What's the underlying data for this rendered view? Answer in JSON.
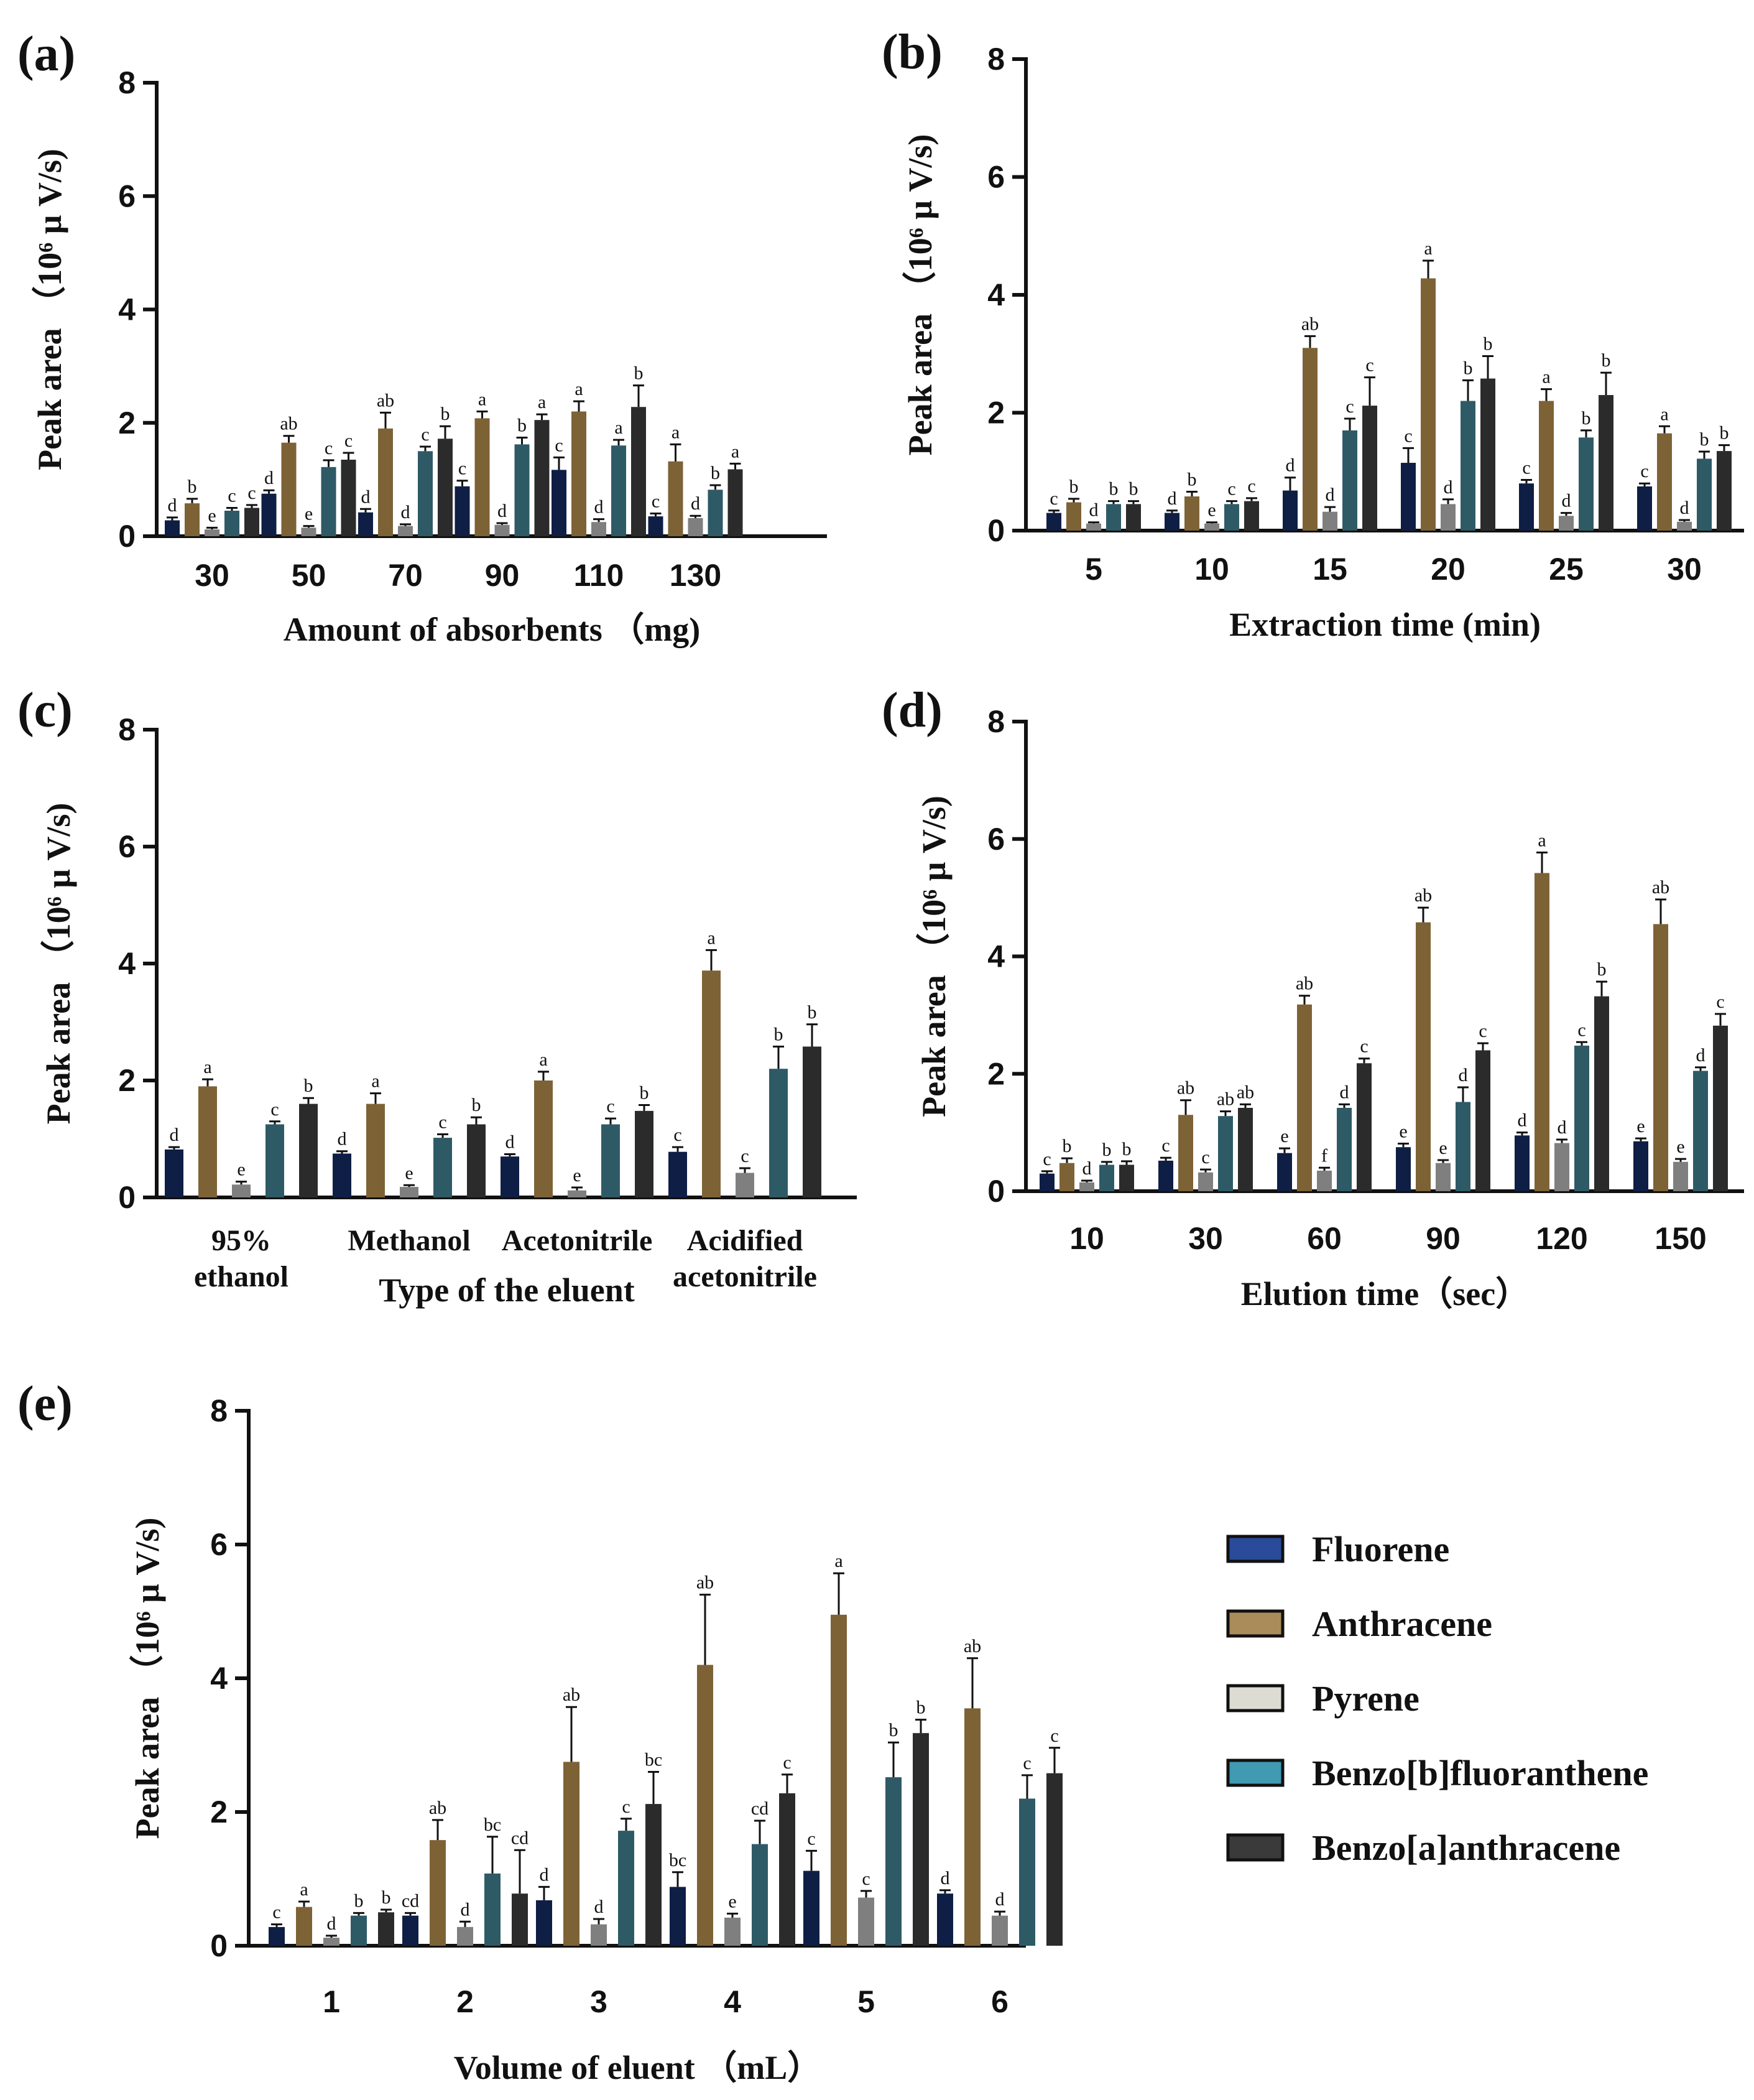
{
  "colors": {
    "Fluorene": "#0f1e45",
    "Anthracene": "#7d6236",
    "Pyrene": "#7f7f7f",
    "Benzo[b]fluoranthene": "#2e5a66",
    "Benzo[a]anthracene": "#2b2b2b",
    "legend_Fluorene": "#2a4a9a",
    "legend_Anthracene": "#a98c5a",
    "legend_Pyrene": "#dcdcd2",
    "legend_Benzo[b]fluoranthene": "#3f9ab2",
    "legend_Benzo[a]anthracene": "#3a3a3a"
  },
  "legend": {
    "entries": [
      "Fluorene",
      "Anthracene",
      "Pyrene",
      "Benzo[b]fluoranthene",
      "Benzo[a]anthracene"
    ]
  },
  "chart_data": [
    {
      "panel": "(a)",
      "type": "bar",
      "xlabel": "Amount of absorbents （mg)",
      "ylabel_main": "Peak area",
      "ylabel_unit": "（10⁶ μ V/s)",
      "ylim": [
        0,
        8
      ],
      "yticks": [
        "0",
        "2",
        "4",
        "6",
        "8"
      ],
      "categories": [
        "30",
        "50",
        "70",
        "90",
        "110",
        "130"
      ],
      "series": [
        {
          "name": "Fluorene",
          "values": [
            0.28,
            0.75,
            0.42,
            0.88,
            1.17,
            0.35
          ],
          "errors": [
            0.05,
            0.06,
            0.06,
            0.1,
            0.22,
            0.05
          ],
          "labels": [
            "d",
            "d",
            "d",
            "c",
            "c",
            "c"
          ]
        },
        {
          "name": "Anthracene",
          "values": [
            0.58,
            1.65,
            1.9,
            2.08,
            2.2,
            1.32
          ],
          "errors": [
            0.08,
            0.12,
            0.28,
            0.12,
            0.18,
            0.3
          ],
          "labels": [
            "b",
            "ab",
            "ab",
            "a",
            "a",
            "a"
          ]
        },
        {
          "name": "Pyrene",
          "values": [
            0.12,
            0.15,
            0.18,
            0.2,
            0.25,
            0.32
          ],
          "errors": [
            0.03,
            0.03,
            0.03,
            0.03,
            0.05,
            0.04
          ],
          "labels": [
            "e",
            "e",
            "d",
            "d",
            "d",
            "d"
          ]
        },
        {
          "name": "Benzo[b]fluoranthene",
          "values": [
            0.45,
            1.22,
            1.5,
            1.62,
            1.6,
            0.82
          ],
          "errors": [
            0.05,
            0.12,
            0.08,
            0.12,
            0.1,
            0.08
          ],
          "labels": [
            "c",
            "c",
            "c",
            "b",
            "a",
            "b"
          ]
        },
        {
          "name": "Benzo[a]anthracene",
          "values": [
            0.5,
            1.35,
            1.72,
            2.05,
            2.28,
            1.18
          ],
          "errors": [
            0.05,
            0.12,
            0.22,
            0.1,
            0.38,
            0.1
          ],
          "labels": [
            "c",
            "c",
            "b",
            "a",
            "b",
            "a"
          ]
        }
      ]
    },
    {
      "panel": "(b)",
      "type": "bar",
      "xlabel": "Extraction time (min)",
      "ylabel_main": "Peak area",
      "ylabel_unit": "（10⁶ μ V/s)",
      "ylim": [
        0,
        8
      ],
      "yticks": [
        "0",
        "2",
        "4",
        "6",
        "8"
      ],
      "categories": [
        "5",
        "10",
        "15",
        "20",
        "25",
        "30"
      ],
      "series": [
        {
          "name": "Fluorene",
          "values": [
            0.3,
            0.3,
            0.68,
            1.15,
            0.8,
            0.75
          ],
          "errors": [
            0.04,
            0.04,
            0.22,
            0.25,
            0.06,
            0.05
          ],
          "labels": [
            "c",
            "d",
            "d",
            "c",
            "c",
            "c"
          ]
        },
        {
          "name": "Anthracene",
          "values": [
            0.48,
            0.58,
            3.1,
            4.28,
            2.2,
            1.65
          ],
          "errors": [
            0.06,
            0.08,
            0.2,
            0.3,
            0.2,
            0.12
          ],
          "labels": [
            "b",
            "b",
            "ab",
            "a",
            "a",
            "a"
          ]
        },
        {
          "name": "Pyrene",
          "values": [
            0.12,
            0.12,
            0.32,
            0.45,
            0.25,
            0.15
          ],
          "errors": [
            0.02,
            0.02,
            0.08,
            0.08,
            0.05,
            0.03
          ],
          "labels": [
            "d",
            "e",
            "d",
            "d",
            "d",
            "d"
          ]
        },
        {
          "name": "Benzo[b]fluoranthene",
          "values": [
            0.45,
            0.45,
            1.7,
            2.2,
            1.58,
            1.22
          ],
          "errors": [
            0.05,
            0.05,
            0.2,
            0.35,
            0.12,
            0.12
          ],
          "labels": [
            "b",
            "c",
            "c",
            "b",
            "b",
            "b"
          ]
        },
        {
          "name": "Benzo[a]anthracene",
          "values": [
            0.45,
            0.5,
            2.12,
            2.58,
            2.3,
            1.35
          ],
          "errors": [
            0.05,
            0.05,
            0.48,
            0.38,
            0.38,
            0.1
          ],
          "labels": [
            "b",
            "c",
            "c",
            "b",
            "b",
            "b"
          ]
        }
      ]
    },
    {
      "panel": "(c)",
      "type": "bar",
      "xlabel": "Type of the eluent",
      "ylabel_main": "Peak area",
      "ylabel_unit": "（10⁶ μ V/s)",
      "ylim": [
        0,
        8
      ],
      "yticks": [
        "0",
        "2",
        "4",
        "6",
        "8"
      ],
      "categories": [
        "95%\nethanol",
        "Methanol",
        "Acetonitrile",
        "Acidified\nacetonitrile"
      ],
      "series": [
        {
          "name": "Fluorene",
          "values": [
            0.82,
            0.75,
            0.7,
            0.78
          ],
          "errors": [
            0.04,
            0.04,
            0.04,
            0.08
          ],
          "labels": [
            "d",
            "d",
            "d",
            "c"
          ]
        },
        {
          "name": "Anthracene",
          "values": [
            1.9,
            1.6,
            2.0,
            3.88
          ],
          "errors": [
            0.12,
            0.18,
            0.15,
            0.35
          ],
          "labels": [
            "a",
            "a",
            "a",
            "a"
          ]
        },
        {
          "name": "Pyrene",
          "values": [
            0.22,
            0.18,
            0.12,
            0.42
          ],
          "errors": [
            0.05,
            0.03,
            0.05,
            0.08
          ],
          "labels": [
            "e",
            "e",
            "e",
            "c"
          ]
        },
        {
          "name": "Benzo[b]fluoranthene",
          "values": [
            1.25,
            1.02,
            1.25,
            2.2
          ],
          "errors": [
            0.05,
            0.06,
            0.1,
            0.38
          ],
          "labels": [
            "c",
            "c",
            "c",
            "b"
          ]
        },
        {
          "name": "Benzo[a]anthracene",
          "values": [
            1.6,
            1.25,
            1.48,
            2.58
          ],
          "errors": [
            0.1,
            0.12,
            0.1,
            0.38
          ],
          "labels": [
            "b",
            "b",
            "b",
            "b"
          ]
        }
      ]
    },
    {
      "panel": "(d)",
      "type": "bar",
      "xlabel": "Elution time（sec）",
      "ylabel_main": "Peak area",
      "ylabel_unit": "（10⁶ μ V/s)",
      "ylim": [
        0,
        8
      ],
      "yticks": [
        "0",
        "2",
        "4",
        "6",
        "8"
      ],
      "categories": [
        "10",
        "30",
        "60",
        "90",
        "120",
        "150"
      ],
      "series": [
        {
          "name": "Fluorene",
          "values": [
            0.3,
            0.52,
            0.65,
            0.75,
            0.95,
            0.85
          ],
          "errors": [
            0.04,
            0.05,
            0.08,
            0.06,
            0.05,
            0.05
          ],
          "labels": [
            "c",
            "c",
            "e",
            "e",
            "d",
            "e"
          ]
        },
        {
          "name": "Anthracene",
          "values": [
            0.48,
            1.3,
            3.18,
            4.58,
            5.42,
            4.55
          ],
          "errors": [
            0.08,
            0.25,
            0.15,
            0.25,
            0.35,
            0.42
          ],
          "labels": [
            "b",
            "ab",
            "ab",
            "ab",
            "a",
            "ab"
          ]
        },
        {
          "name": "Pyrene",
          "values": [
            0.15,
            0.32,
            0.35,
            0.48,
            0.82,
            0.5
          ],
          "errors": [
            0.03,
            0.05,
            0.05,
            0.05,
            0.06,
            0.05
          ],
          "labels": [
            "d",
            "c",
            "f",
            "e",
            "d",
            "e"
          ]
        },
        {
          "name": "Benzo[b]fluoranthene",
          "values": [
            0.45,
            1.28,
            1.42,
            1.52,
            2.48,
            2.05
          ],
          "errors": [
            0.05,
            0.08,
            0.06,
            0.25,
            0.06,
            0.06
          ],
          "labels": [
            "b",
            "ab",
            "d",
            "d",
            "c",
            "d"
          ]
        },
        {
          "name": "Benzo[a]anthracene",
          "values": [
            0.45,
            1.42,
            2.18,
            2.4,
            3.32,
            2.82
          ],
          "errors": [
            0.06,
            0.06,
            0.08,
            0.12,
            0.25,
            0.2
          ],
          "labels": [
            "b",
            "ab",
            "c",
            "c",
            "b",
            "c"
          ]
        }
      ]
    },
    {
      "panel": "(e)",
      "type": "bar",
      "xlabel": "Volume of eluent （mL）",
      "ylabel_main": "Peak area",
      "ylabel_unit": "（10⁶ μ V/s)",
      "ylim": [
        0,
        8
      ],
      "yticks": [
        "0",
        "2",
        "4",
        "6",
        "8"
      ],
      "categories": [
        "1",
        "2",
        "3",
        "4",
        "5",
        "6"
      ],
      "series": [
        {
          "name": "Fluorene",
          "values": [
            0.28,
            0.45,
            0.68,
            0.88,
            1.12,
            0.78
          ],
          "errors": [
            0.04,
            0.04,
            0.2,
            0.22,
            0.3,
            0.05
          ],
          "labels": [
            "c",
            "cd",
            "d",
            "bc",
            "c",
            "d"
          ]
        },
        {
          "name": "Anthracene",
          "values": [
            0.58,
            1.58,
            2.75,
            4.2,
            4.95,
            3.55
          ],
          "errors": [
            0.08,
            0.3,
            0.82,
            1.05,
            0.62,
            0.75
          ],
          "labels": [
            "a",
            "ab",
            "ab",
            "ab",
            "a",
            "ab"
          ]
        },
        {
          "name": "Pyrene",
          "values": [
            0.12,
            0.28,
            0.32,
            0.42,
            0.72,
            0.45
          ],
          "errors": [
            0.03,
            0.08,
            0.08,
            0.06,
            0.1,
            0.06
          ],
          "labels": [
            "d",
            "d",
            "d",
            "e",
            "c",
            "d"
          ]
        },
        {
          "name": "Benzo[b]fluoranthene",
          "values": [
            0.45,
            1.08,
            1.72,
            1.52,
            2.52,
            2.2
          ],
          "errors": [
            0.04,
            0.55,
            0.18,
            0.35,
            0.52,
            0.35
          ],
          "labels": [
            "b",
            "bc",
            "c",
            "cd",
            "b",
            "c"
          ]
        },
        {
          "name": "Benzo[a]anthracene",
          "values": [
            0.5,
            0.78,
            2.12,
            2.28,
            3.18,
            2.58
          ],
          "errors": [
            0.04,
            0.65,
            0.48,
            0.28,
            0.2,
            0.38
          ],
          "labels": [
            "b",
            "cd",
            "bc",
            "c",
            "b",
            "c"
          ]
        }
      ]
    }
  ]
}
